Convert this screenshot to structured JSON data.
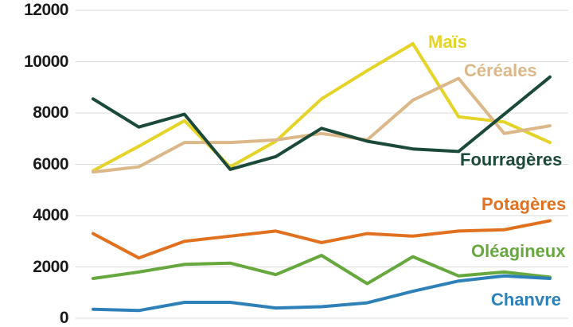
{
  "chart_data": {
    "type": "line",
    "title": "",
    "xlabel": "",
    "ylabel": "",
    "x_points": 11,
    "x_tick_labels_visible": false,
    "ylim": [
      0,
      12000
    ],
    "ytick_values": [
      12000,
      10000,
      8000,
      6000,
      4000,
      2000,
      0
    ],
    "yticks": [
      "12000",
      "10000",
      "8000",
      "6000",
      "4000",
      "2000",
      "0"
    ],
    "grid": true,
    "grid_color": "#d9d9d9",
    "background_color": "#ffffff",
    "legend_position": "inline-labels-right",
    "series": [
      {
        "name": "Maïs",
        "color": "#e5d327",
        "values": [
          5750,
          6700,
          7700,
          5900,
          6900,
          8550,
          9650,
          10700,
          7850,
          7650,
          6850
        ]
      },
      {
        "name": "Céréales",
        "color": "#dcb888",
        "values": [
          5700,
          5900,
          6850,
          6850,
          6950,
          7200,
          6950,
          8500,
          9350,
          7200,
          7500
        ]
      },
      {
        "name": "Fourragères",
        "color": "#1c4a3a",
        "values": [
          8550,
          7450,
          7950,
          5800,
          6300,
          7400,
          6900,
          6600,
          6500,
          7950,
          9400
        ]
      },
      {
        "name": "Potagères",
        "color": "#e1711f",
        "values": [
          3300,
          2350,
          3000,
          3200,
          3400,
          2950,
          3300,
          3200,
          3400,
          3450,
          3800
        ]
      },
      {
        "name": "Oléagineux",
        "color": "#67a83e",
        "values": [
          1550,
          1800,
          2100,
          2150,
          1700,
          2450,
          1350,
          2400,
          1650,
          1800,
          1600
        ]
      },
      {
        "name": "Chanvre",
        "color": "#2d80b8",
        "values": [
          350,
          300,
          620,
          620,
          400,
          450,
          600,
          1050,
          1450,
          1650,
          1550
        ]
      }
    ]
  }
}
